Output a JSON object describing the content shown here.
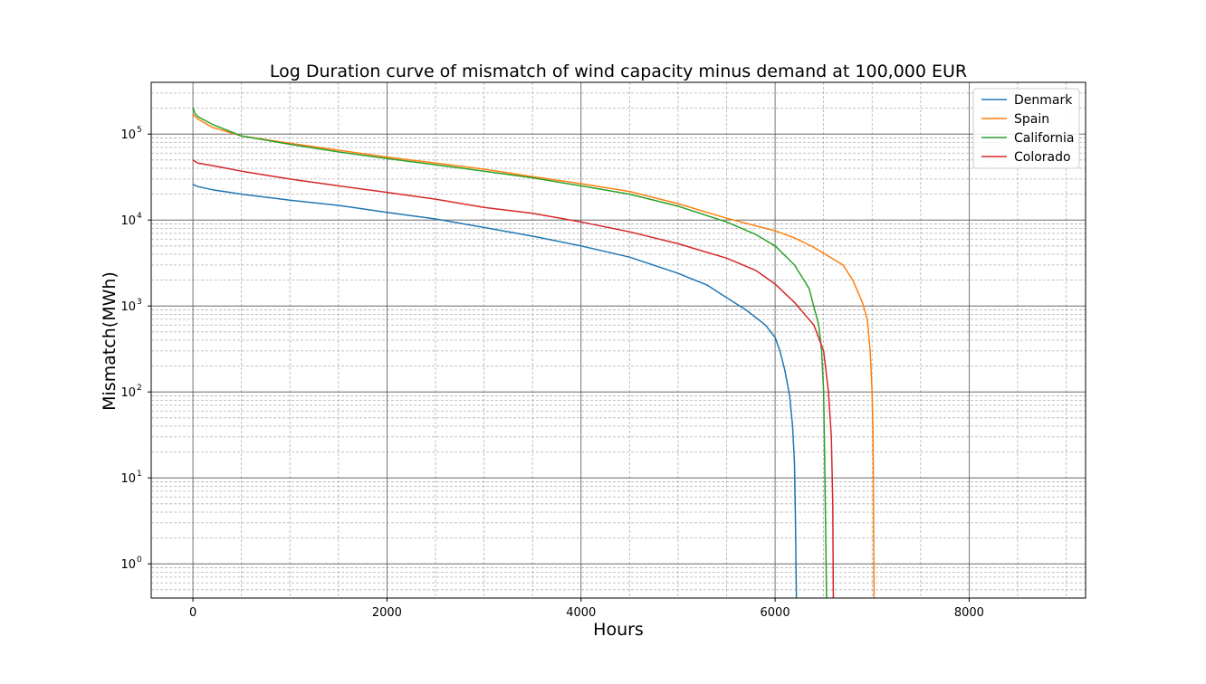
{
  "chart_data": {
    "type": "line",
    "title": "Log Duration curve of mismatch of wind capacity minus demand at 100,000 EUR",
    "xlabel": "Hours",
    "ylabel": "Mismatch(MWh)",
    "x_scale": "linear",
    "y_scale": "log",
    "xlim": [
      -430,
      9200
    ],
    "ylim": [
      0.4,
      400000
    ],
    "x_ticks": [
      0,
      2000,
      4000,
      6000,
      8000
    ],
    "y_ticks": [
      1,
      10,
      100,
      1000,
      10000,
      100000
    ],
    "grid": {
      "major": true,
      "minor": true
    },
    "legend": {
      "position": "top-right"
    },
    "series": [
      {
        "name": "Denmark",
        "color": "#1f77b4",
        "x": [
          0,
          50,
          200,
          500,
          1000,
          1500,
          2000,
          2500,
          3000,
          3500,
          4000,
          4500,
          5000,
          5300,
          5500,
          5700,
          5900,
          6000,
          6050,
          6100,
          6150,
          6180,
          6200,
          6210,
          6220
        ],
        "y": [
          26000,
          24500,
          22500,
          20000,
          17000,
          14800,
          12300,
          10300,
          8200,
          6500,
          5000,
          3700,
          2400,
          1750,
          1250,
          900,
          600,
          430,
          300,
          180,
          90,
          40,
          15,
          3,
          0.4
        ]
      },
      {
        "name": "Spain",
        "color": "#ff7f0e",
        "x": [
          0,
          50,
          200,
          500,
          1000,
          1500,
          2000,
          2500,
          3000,
          3500,
          4000,
          4500,
          5000,
          5500,
          6000,
          6200,
          6400,
          6550,
          6700,
          6800,
          6900,
          6950,
          6980,
          7000,
          7010,
          7020
        ],
        "y": [
          170000,
          150000,
          120000,
          95000,
          78000,
          65000,
          54000,
          46000,
          39000,
          32000,
          26500,
          21500,
          15500,
          10500,
          7500,
          6200,
          4800,
          3800,
          3000,
          2000,
          1100,
          700,
          300,
          100,
          30,
          0.4
        ],
        "label_note": ""
      },
      {
        "name": "California",
        "color": "#2ca02c",
        "x": [
          0,
          20,
          50,
          200,
          500,
          1000,
          1500,
          2000,
          2500,
          3000,
          3500,
          4000,
          4500,
          5000,
          5500,
          5800,
          6000,
          6200,
          6350,
          6450,
          6480,
          6500,
          6510,
          6520,
          6530
        ],
        "y": [
          205000,
          175000,
          160000,
          130000,
          95000,
          76000,
          62000,
          52000,
          44000,
          37000,
          31000,
          25000,
          20000,
          14500,
          9500,
          6800,
          5000,
          3000,
          1600,
          600,
          300,
          100,
          20,
          3,
          0.4
        ]
      },
      {
        "name": "Colorado",
        "color": "#d62728",
        "x": [
          0,
          50,
          200,
          500,
          1000,
          1500,
          2000,
          2500,
          3000,
          3500,
          4000,
          4500,
          5000,
          5500,
          5800,
          6000,
          6200,
          6400,
          6500,
          6550,
          6580,
          6595,
          6600
        ],
        "y": [
          50000,
          46000,
          43000,
          37000,
          30000,
          25000,
          21000,
          17500,
          14000,
          12000,
          9500,
          7300,
          5300,
          3600,
          2600,
          1800,
          1100,
          600,
          300,
          100,
          30,
          5,
          0.4
        ]
      }
    ]
  }
}
